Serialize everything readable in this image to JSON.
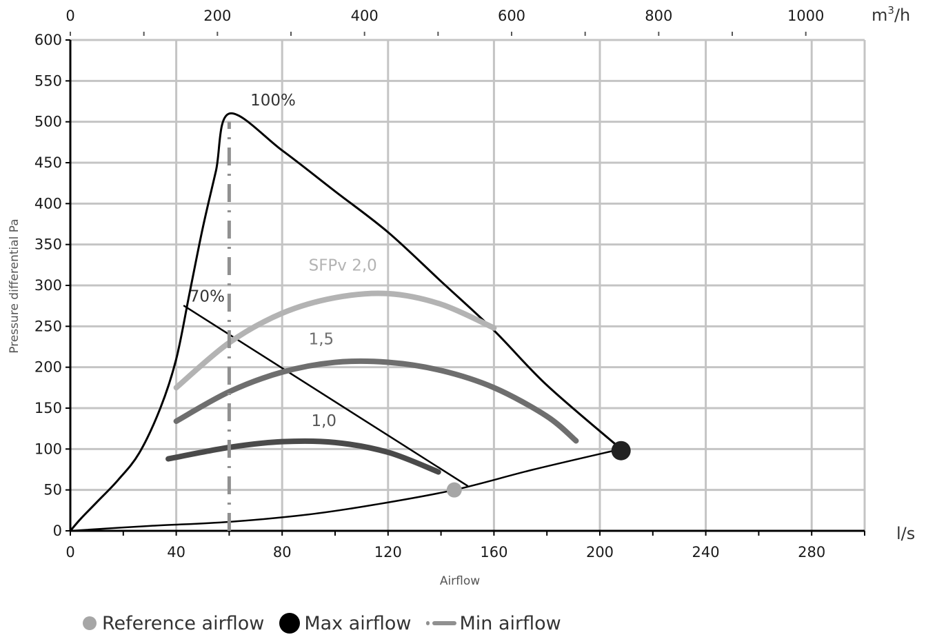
{
  "chart_data": {
    "type": "line",
    "xlabel": "Airflow",
    "ylabel": "Pressure differential Pa",
    "x_unit": "l/s",
    "x2_unit": "m³/h",
    "xlim": [
      0,
      300
    ],
    "ylim": [
      0,
      600
    ],
    "x_ticks": [
      0,
      40,
      80,
      120,
      160,
      200,
      240,
      280
    ],
    "y_ticks": [
      0,
      50,
      100,
      150,
      200,
      250,
      300,
      350,
      400,
      450,
      500,
      550,
      600
    ],
    "x2_ticks": [
      0,
      200,
      400,
      600,
      800,
      1000
    ],
    "grid": true,
    "series": [
      {
        "name": "100%",
        "color": "#000000",
        "style": "solid",
        "x": [
          0,
          4,
          10,
          18,
          26,
          34,
          40,
          45,
          50,
          55,
          60,
          80,
          100,
          120,
          140,
          160,
          180,
          208
        ],
        "y": [
          0,
          15,
          35,
          62,
          95,
          150,
          210,
          290,
          370,
          440,
          510,
          465,
          415,
          365,
          305,
          245,
          178,
          100
        ]
      },
      {
        "name": "70%",
        "color": "#000000",
        "style": "solid",
        "x": [
          43,
          150
        ],
        "y": [
          275,
          55
        ]
      },
      {
        "name": "",
        "color": "#000000",
        "style": "solid",
        "x": [
          0,
          30,
          60,
          90,
          115,
          145,
          175,
          208
        ],
        "y": [
          0,
          6,
          11,
          20,
          32,
          50,
          75,
          100
        ]
      },
      {
        "name": "SFPv 2,0",
        "color": "#b3b3b3",
        "style": "thick",
        "x": [
          40,
          60,
          80,
          100,
          120,
          140,
          160
        ],
        "y": [
          175,
          230,
          266,
          285,
          290,
          277,
          248
        ]
      },
      {
        "name": "1,5",
        "color": "#6e6e6e",
        "style": "thick",
        "x": [
          40,
          60,
          80,
          100,
          120,
          140,
          160,
          180,
          191
        ],
        "y": [
          134,
          170,
          194,
          206,
          206,
          196,
          175,
          140,
          110
        ]
      },
      {
        "name": "1,0",
        "color": "#4a4a4a",
        "style": "thick",
        "x": [
          37,
          60,
          80,
          100,
          120,
          139
        ],
        "y": [
          88,
          102,
          109,
          108,
          96,
          72
        ]
      },
      {
        "name": "Min airflow",
        "color": "#909090",
        "style": "dashdot",
        "x": [
          60,
          60
        ],
        "y": [
          0,
          500
        ]
      }
    ],
    "points": [
      {
        "name": "Reference airflow",
        "x": 145,
        "y": 50,
        "color": "#a6a6a6"
      },
      {
        "name": "Max airflow",
        "x": 208,
        "y": 98,
        "color": "#222222"
      }
    ],
    "annotations": [
      {
        "text": "100%",
        "x": 68,
        "y": 520,
        "color": "#333333"
      },
      {
        "text": "70%",
        "x": 45,
        "y": 280,
        "color": "#333333"
      },
      {
        "text": "SFPv 2,0",
        "x": 90,
        "y": 318,
        "color": "#b3b3b3"
      },
      {
        "text": "1,5",
        "x": 90,
        "y": 228,
        "color": "#6e6e6e"
      },
      {
        "text": "1,0",
        "x": 91,
        "y": 128,
        "color": "#555555"
      }
    ],
    "legend": {
      "placement": "bottom",
      "items": [
        {
          "label": "Reference airflow",
          "marker": "small-gray-dot"
        },
        {
          "label": "Max airflow",
          "marker": "large-black-dot"
        },
        {
          "label": "Min airflow",
          "marker": "dash-dot"
        }
      ]
    }
  }
}
